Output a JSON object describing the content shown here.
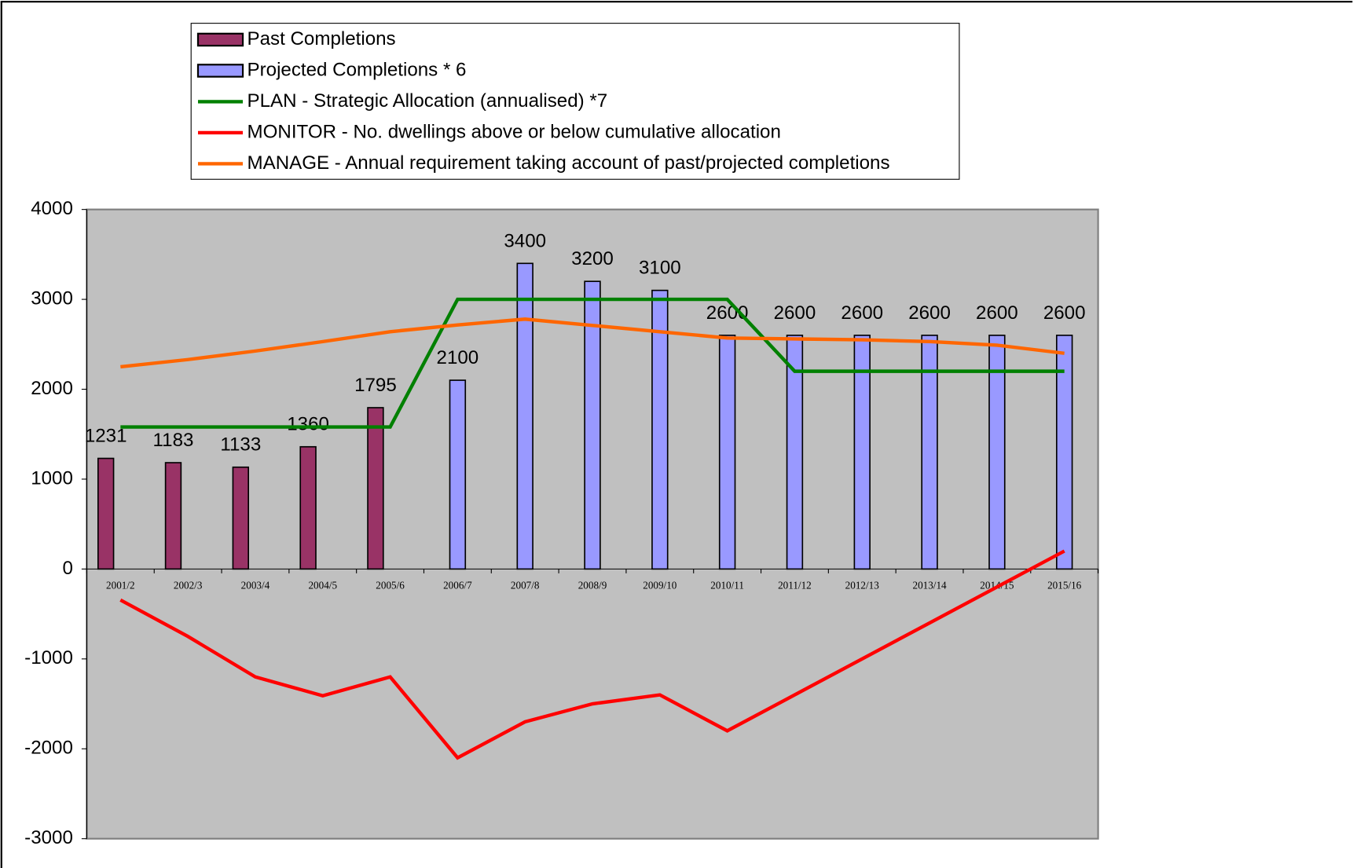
{
  "chart_data": {
    "type": "combo",
    "categories": [
      "2001/2",
      "2002/3",
      "2003/4",
      "2004/5",
      "2005/6",
      "2006/7",
      "2007/8",
      "2008/9",
      "2009/10",
      "2010/11",
      "2011/12",
      "2012/13",
      "2013/14",
      "2014/15",
      "2015/16"
    ],
    "ylim": [
      -3000,
      4000
    ],
    "yticks": [
      -3000,
      -2000,
      -1000,
      0,
      1000,
      2000,
      3000,
      4000
    ],
    "plot_background": "#c0c0c0",
    "series": [
      {
        "name": "Past Completions",
        "type": "bar",
        "color": "#993366",
        "values": [
          1231,
          1183,
          1133,
          1360,
          1795,
          null,
          null,
          null,
          null,
          null,
          null,
          null,
          null,
          null,
          null
        ]
      },
      {
        "name": "Projected Completions * 6",
        "type": "bar",
        "color": "#9999ff",
        "values": [
          null,
          null,
          null,
          null,
          null,
          2100,
          3400,
          3200,
          3100,
          2600,
          2600,
          2600,
          2600,
          2600,
          2600
        ]
      },
      {
        "name": "PLAN - Strategic Allocation (annualised) *7",
        "type": "line",
        "color": "#008000",
        "values": [
          1580,
          1580,
          1580,
          1580,
          1580,
          3000,
          3000,
          3000,
          3000,
          3000,
          2200,
          2200,
          2200,
          2200,
          2200
        ]
      },
      {
        "name": "MONITOR - No. dwellings above or below cumulative allocation",
        "type": "line",
        "color": "#ff0000",
        "values": [
          -345,
          -750,
          -1200,
          -1410,
          -1200,
          -2100,
          -1700,
          -1500,
          -1400,
          -1800,
          -1400,
          -1000,
          -600,
          -200,
          200
        ]
      },
      {
        "name": "MANAGE - Annual requirement taking account of past/projected completions",
        "type": "line",
        "color": "#ff6600",
        "values": [
          2250,
          2330,
          2425,
          2530,
          2640,
          2715,
          2780,
          2710,
          2640,
          2570,
          2560,
          2550,
          2530,
          2490,
          2400
        ]
      }
    ]
  }
}
